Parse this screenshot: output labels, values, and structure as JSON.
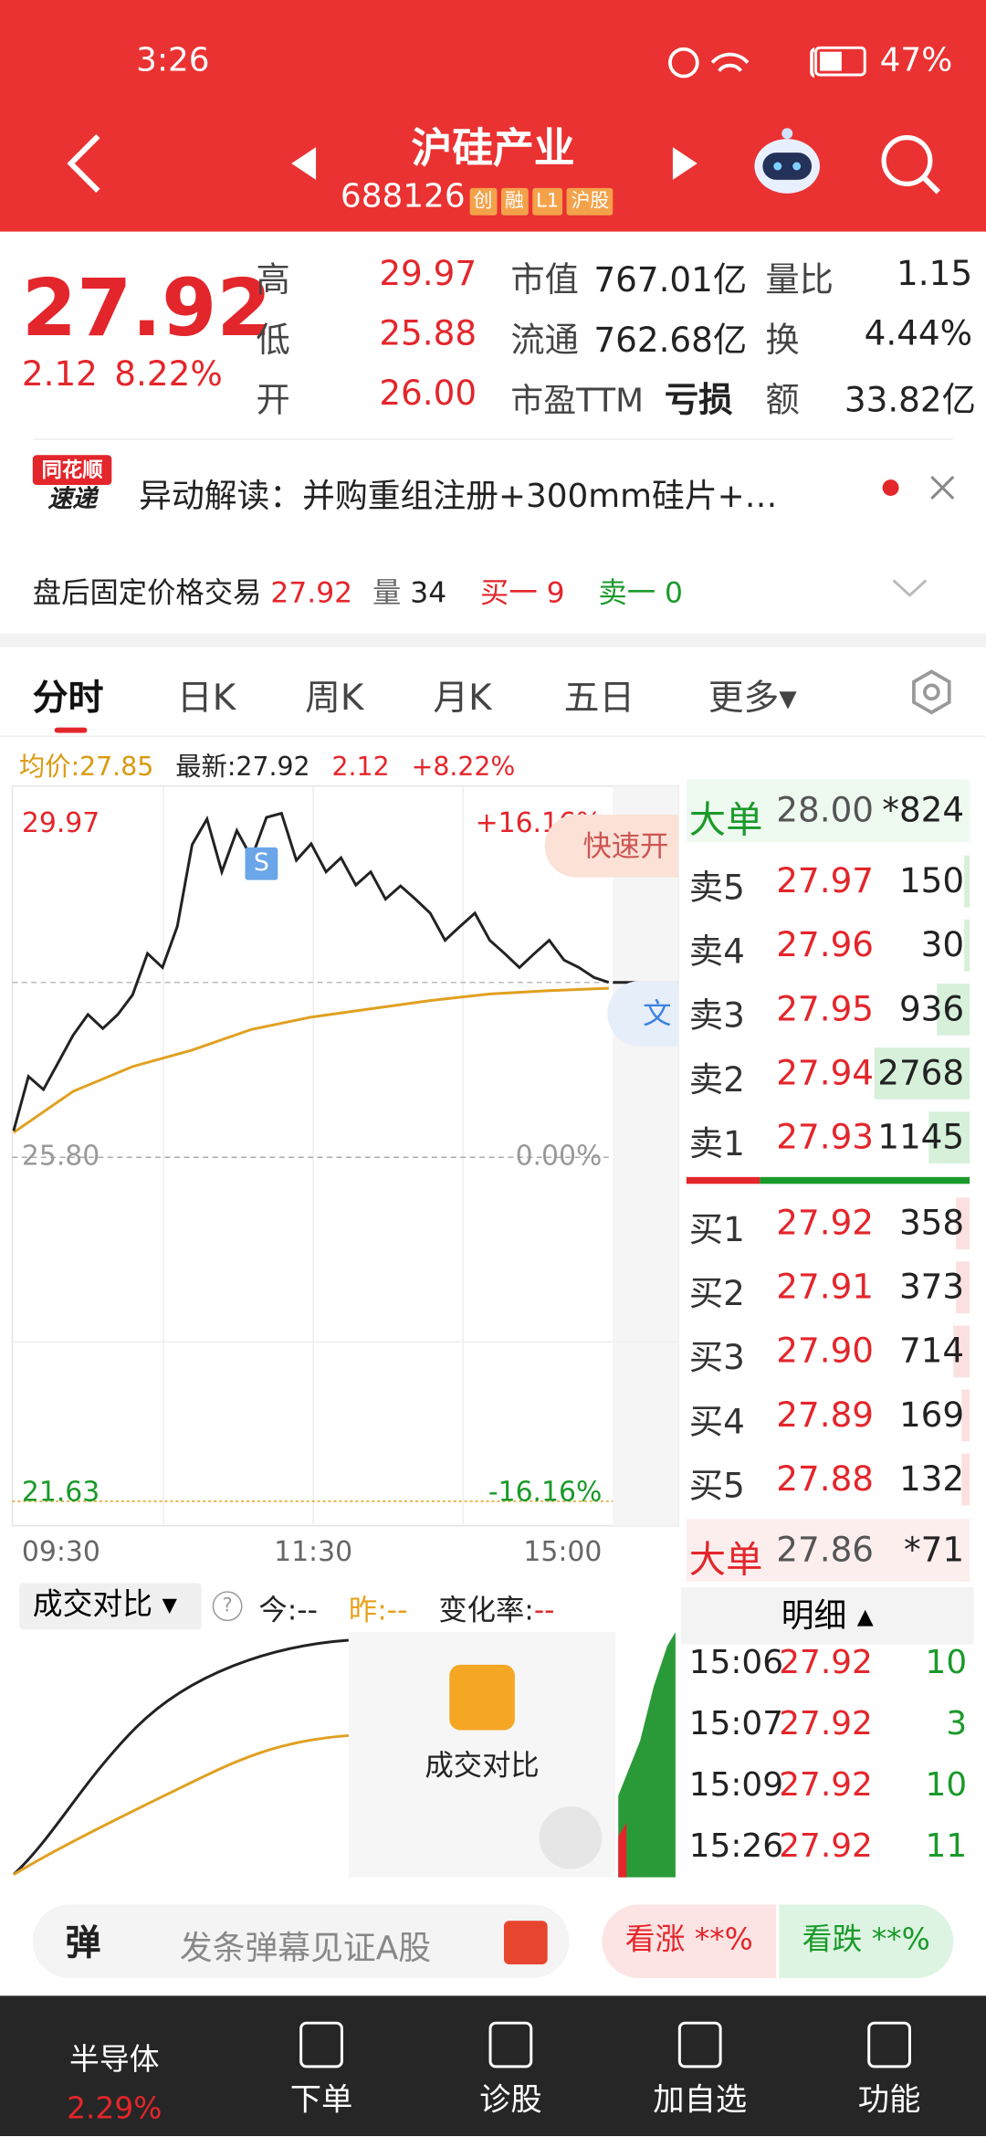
{
  "status_bar": {
    "time": "3:26",
    "battery": "47%"
  },
  "header": {
    "title": "沪硅产业",
    "code": "688126",
    "tags": [
      "创",
      "融",
      "L1",
      "沪股"
    ]
  },
  "quote": {
    "price": "27.92",
    "change": "2.12",
    "change_pct": "8.22%",
    "stats": [
      [
        "高",
        "29.97",
        "市值",
        "767.01亿",
        "量比",
        "1.15"
      ],
      [
        "低",
        "25.88",
        "流通",
        "762.68亿",
        "换",
        "4.44%"
      ],
      [
        "开",
        "26.00",
        "市盈TTM",
        "亏损",
        "额",
        "33.82亿"
      ]
    ]
  },
  "news": {
    "logo_top": "同花顺",
    "logo_bottom": "速递",
    "text": "异动解读：并购重组注册+300mm硅片+…"
  },
  "after_hours": {
    "label": "盘后固定价格交易",
    "price": "27.92",
    "vol_label": "量",
    "vol": "34",
    "bid_label": "买一",
    "bid": "9",
    "ask_label": "卖一",
    "ask": "0"
  },
  "tabs": [
    "分时",
    "日K",
    "周K",
    "月K",
    "五日",
    "更多"
  ],
  "info_row": {
    "avg": "均价:27.85",
    "latest": "最新:27.92",
    "change": "2.12",
    "change_pct": "+8.22%"
  },
  "intraday": {
    "yticks": [
      29.97,
      {
        "value": 25.8,
        "label": "25.80"
      },
      21.63
    ],
    "ylim": [
      21.63,
      29.97
    ],
    "pct_labels": [
      "+16.16%",
      "0.00%",
      "-16.16%"
    ],
    "time_labels": [
      "09:30",
      "11:30",
      "15:00"
    ],
    "latest": 27.92,
    "signal": "S",
    "quick_trade": "快速开",
    "side_tag": "文",
    "price": [
      26.12,
      26.78,
      26.62,
      26.95,
      27.28,
      27.53,
      27.36,
      27.53,
      27.77,
      28.27,
      28.1,
      28.6,
      29.59,
      29.9,
      29.26,
      29.76,
      29.43,
      29.92,
      29.97,
      29.4,
      29.6,
      29.26,
      29.43,
      29.1,
      29.26,
      28.93,
      29.09,
      28.93,
      28.76,
      28.43,
      28.6,
      28.76,
      28.43,
      28.27,
      28.1,
      28.27,
      28.43,
      28.19,
      28.1,
      27.98,
      27.92
    ],
    "avg": [
      26.1,
      26.6,
      26.9,
      27.1,
      27.35,
      27.5,
      27.6,
      27.7,
      27.78,
      27.82,
      27.85
    ]
  },
  "order_book": {
    "big_sell": [
      "大单",
      "28.00",
      "*824"
    ],
    "asks": [
      [
        "卖5",
        "27.97",
        "150"
      ],
      [
        "卖4",
        "27.96",
        "30"
      ],
      [
        "卖3",
        "27.95",
        "936"
      ],
      [
        "卖2",
        "27.94",
        "2768"
      ],
      [
        "卖1",
        "27.93",
        "1145"
      ]
    ],
    "bids": [
      [
        "买1",
        "27.92",
        "358"
      ],
      [
        "买2",
        "27.91",
        "373"
      ],
      [
        "买3",
        "27.90",
        "714"
      ],
      [
        "买4",
        "27.89",
        "169"
      ],
      [
        "买5",
        "27.88",
        "132"
      ]
    ],
    "big_buy": [
      "大单",
      "27.86",
      "*71"
    ]
  },
  "compare": {
    "title": "成交对比",
    "help": "?",
    "today": "今:--",
    "yest_label": "昨:",
    "yest": "--",
    "rate_label": "变化率:",
    "rate": "--",
    "overlay": "成交对比"
  },
  "details": {
    "title": "明细",
    "rows": [
      [
        "15:06",
        "27.92",
        "10"
      ],
      [
        "15:07",
        "27.92",
        "3"
      ],
      [
        "15:09",
        "27.92",
        "10"
      ],
      [
        "15:26",
        "27.92",
        "11"
      ]
    ]
  },
  "danmu": {
    "icon": "弹",
    "placeholder": "发条弹幕见证A股",
    "up": "看涨 **%",
    "down": "看跌 **%"
  },
  "nav": {
    "sector": "半导体",
    "sector_pct": "2.29%",
    "items": [
      "下单",
      "诊股",
      "加自选",
      "功能"
    ]
  }
}
